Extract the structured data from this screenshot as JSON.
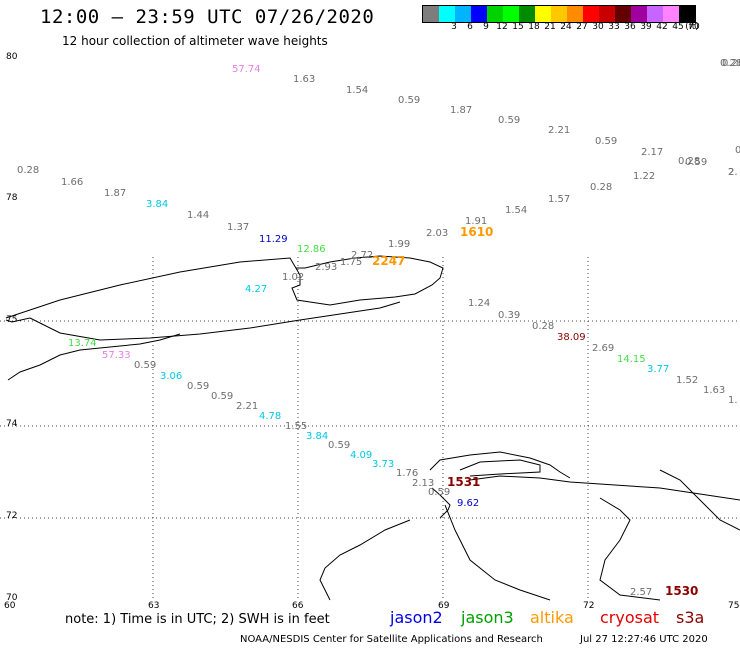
{
  "header": {
    "title": "12:00 – 23:59 UTC 07/26/2020",
    "subtitle": "12 hour collection of altimeter wave heights"
  },
  "legend": {
    "swatches": [
      {
        "color": "#7d7d7d",
        "label": ""
      },
      {
        "color": "#00ffff",
        "label": "3"
      },
      {
        "color": "#00b4ff",
        "label": "6"
      },
      {
        "color": "#0000ff",
        "label": "9"
      },
      {
        "color": "#00d200",
        "label": "12"
      },
      {
        "color": "#00ff00",
        "label": "15"
      },
      {
        "color": "#008c00",
        "label": "18"
      },
      {
        "color": "#ffff00",
        "label": "21"
      },
      {
        "color": "#ffc800",
        "label": "24"
      },
      {
        "color": "#ff8c00",
        "label": "27"
      },
      {
        "color": "#ff0000",
        "label": "30"
      },
      {
        "color": "#c80000",
        "label": "33"
      },
      {
        "color": "#640000",
        "label": "36"
      },
      {
        "color": "#a000a0",
        "label": "39"
      },
      {
        "color": "#c864ff",
        "label": "42"
      },
      {
        "color": "#ff82ff",
        "label": "45"
      },
      {
        "color": "#000000",
        "label": "70"
      }
    ],
    "unit": "(ft)"
  },
  "axes": {
    "lat_labels": [
      "80",
      "78",
      "75",
      "74",
      "72",
      "70"
    ],
    "lon_labels": [
      "60",
      "63",
      "66",
      "69",
      "72",
      "75"
    ]
  },
  "observations": [
    {
      "text": "57.74",
      "color": "#e37fe3"
    },
    {
      "text": "1.63",
      "color": "#6e6e6e"
    },
    {
      "text": "1.54",
      "color": "#6e6e6e"
    },
    {
      "text": "0.59",
      "color": "#6e6e6e"
    },
    {
      "text": "1.87",
      "color": "#6e6e6e"
    },
    {
      "text": "0.59",
      "color": "#6e6e6e"
    },
    {
      "text": "2.21",
      "color": "#6e6e6e"
    },
    {
      "text": "0.59",
      "color": "#6e6e6e"
    },
    {
      "text": "2.17",
      "color": "#6e6e6e"
    },
    {
      "text": "0.59",
      "color": "#6e6e6e"
    },
    {
      "text": "0.28",
      "color": "#6e6e6e"
    },
    {
      "text": "2.",
      "color": "#6e6e6e"
    },
    {
      "text": "0.28",
      "color": "#6e6e6e"
    },
    {
      "text": "1.22",
      "color": "#6e6e6e"
    },
    {
      "text": "0.28",
      "color": "#6e6e6e"
    },
    {
      "text": "1.57",
      "color": "#6e6e6e"
    },
    {
      "text": "1.54",
      "color": "#6e6e6e"
    },
    {
      "text": "1.91",
      "color": "#6e6e6e"
    },
    {
      "text": "1610",
      "color": "#ff9900"
    },
    {
      "text": "2.03",
      "color": "#6e6e6e"
    },
    {
      "text": "1.99",
      "color": "#6e6e6e"
    },
    {
      "text": "0.28",
      "color": "#6e6e6e"
    },
    {
      "text": "1.66",
      "color": "#6e6e6e"
    },
    {
      "text": "1.87",
      "color": "#6e6e6e"
    },
    {
      "text": "3.84",
      "color": "#00c8e6"
    },
    {
      "text": "1.44",
      "color": "#6e6e6e"
    },
    {
      "text": "1.37",
      "color": "#6e6e6e"
    },
    {
      "text": "11.29",
      "color": "#0000c8"
    },
    {
      "text": "12.86",
      "color": "#44dd44"
    },
    {
      "text": "2.72",
      "color": "#6e6e6e"
    },
    {
      "text": "1.75",
      "color": "#6e6e6e"
    },
    {
      "text": "2.93",
      "color": "#6e6e6e"
    },
    {
      "text": "2247",
      "color": "#ff9900"
    },
    {
      "text": "1.02",
      "color": "#6e6e6e"
    },
    {
      "text": "4.27",
      "color": "#00c8e6"
    },
    {
      "text": "1.24",
      "color": "#6e6e6e"
    },
    {
      "text": "0.39",
      "color": "#6e6e6e"
    },
    {
      "text": "0.28",
      "color": "#6e6e6e"
    },
    {
      "text": "38.09",
      "color": "#8b0000"
    },
    {
      "text": "2.69",
      "color": "#6e6e6e"
    },
    {
      "text": "14.15",
      "color": "#44dd44"
    },
    {
      "text": "3.77",
      "color": "#00c8e6"
    },
    {
      "text": "1.52",
      "color": "#6e6e6e"
    },
    {
      "text": "1.63",
      "color": "#6e6e6e"
    },
    {
      "text": "1.",
      "color": "#6e6e6e"
    },
    {
      "text": "13.74",
      "color": "#44dd44"
    },
    {
      "text": "57.33",
      "color": "#e37fe3"
    },
    {
      "text": "0.59",
      "color": "#6e6e6e"
    },
    {
      "text": "3.06",
      "color": "#00c8e6"
    },
    {
      "text": "0.59",
      "color": "#6e6e6e"
    },
    {
      "text": "0.59",
      "color": "#6e6e6e"
    },
    {
      "text": "2.21",
      "color": "#6e6e6e"
    },
    {
      "text": "4.78",
      "color": "#00c8e6"
    },
    {
      "text": "1.55",
      "color": "#6e6e6e"
    },
    {
      "text": "3.84",
      "color": "#00c8e6"
    },
    {
      "text": "0.59",
      "color": "#6e6e6e"
    },
    {
      "text": "4.09",
      "color": "#00c8e6"
    },
    {
      "text": "3.73",
      "color": "#00c8e6"
    },
    {
      "text": "1.76",
      "color": "#6e6e6e"
    },
    {
      "text": "2.13",
      "color": "#6e6e6e"
    },
    {
      "text": "1531",
      "color": "#8b0000"
    },
    {
      "text": "0.59",
      "color": "#6e6e6e"
    },
    {
      "text": "9.62",
      "color": "#0000c8"
    },
    {
      "text": "2.57",
      "color": "#6e6e6e"
    },
    {
      "text": "1530",
      "color": "#8b0000"
    },
    {
      "text": "0.28",
      "color": "#6e6e6e"
    },
    {
      "text": "0",
      "color": "#6e6e6e"
    },
    {
      "text": "2.",
      "color": "#6e6e6e"
    }
  ],
  "footer": {
    "note": "note: 1) Time is in UTC; 2) SWH is in feet",
    "satellites": [
      {
        "name": "jason2",
        "color": "#0000e6"
      },
      {
        "name": "jason3",
        "color": "#00a000"
      },
      {
        "name": "altika",
        "color": "#ff9900"
      },
      {
        "name": "cryosat",
        "color": "#e60000"
      },
      {
        "name": "s3a",
        "color": "#8b0000"
      }
    ],
    "credit": "NOAA/NESDIS Center for Satellite Applications and Research",
    "timestamp": "Jul 27 12:27:46 UTC 2020"
  }
}
